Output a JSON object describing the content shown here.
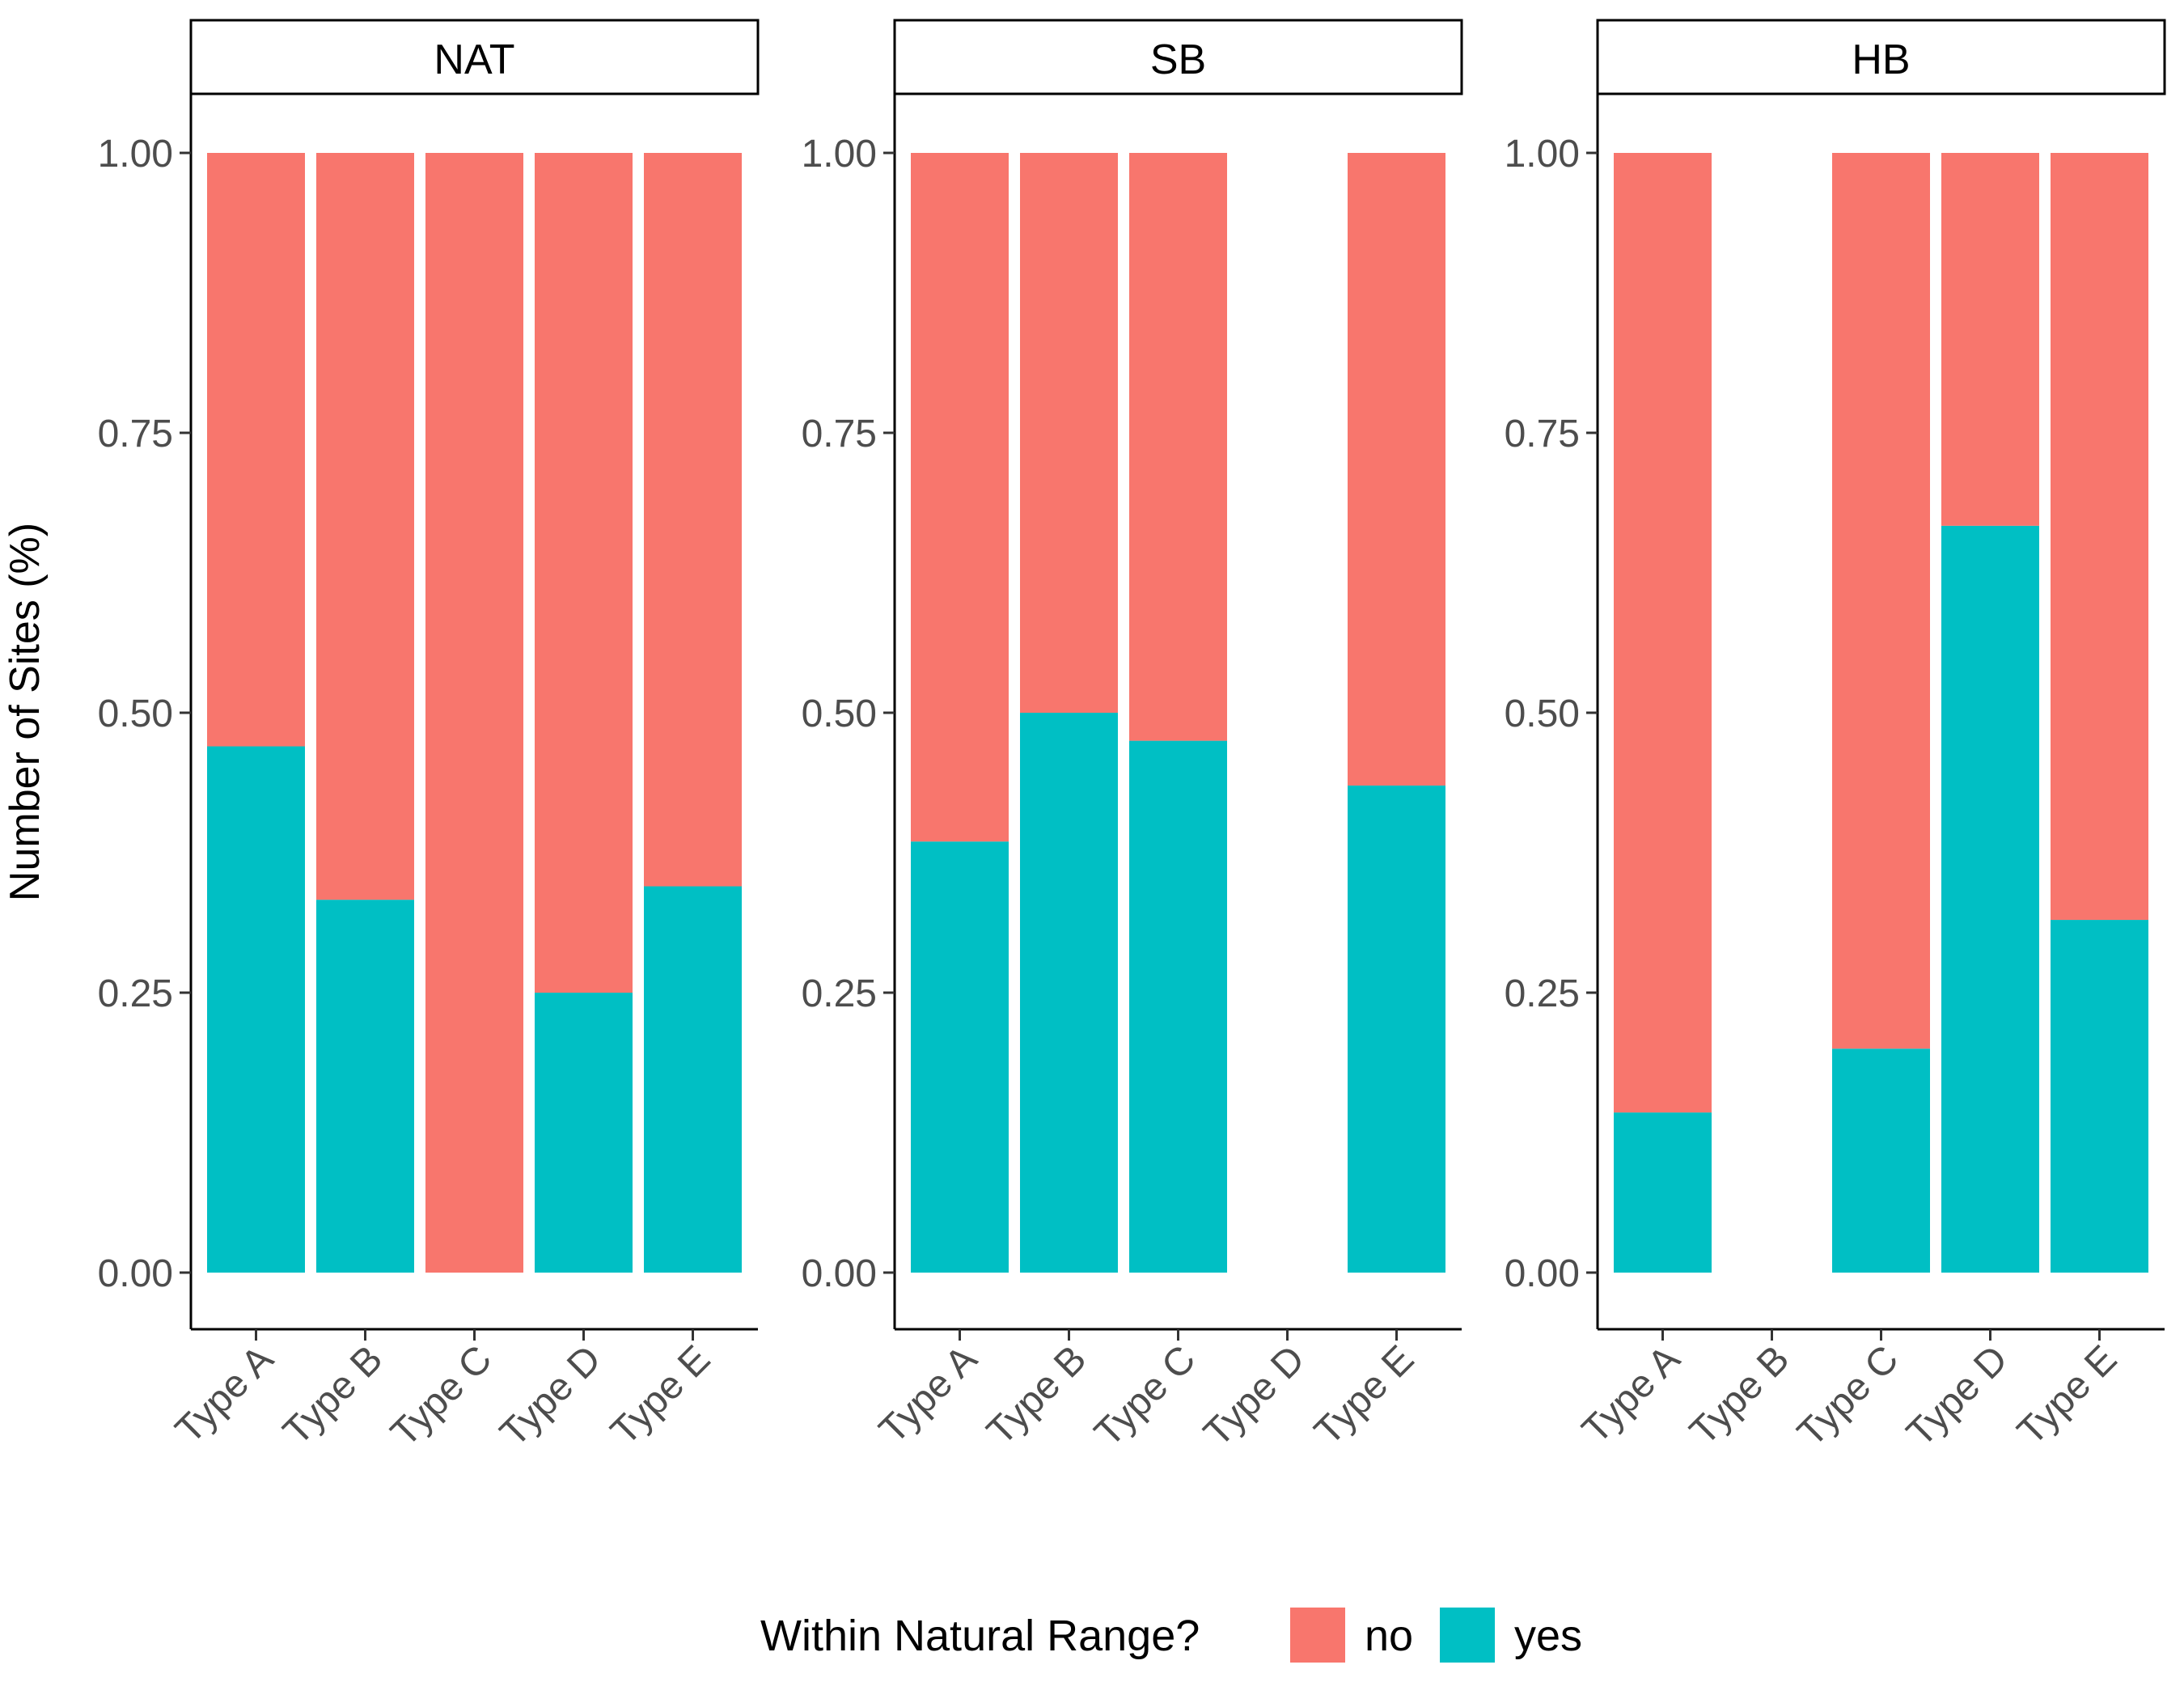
{
  "chart_data": {
    "type": "bar",
    "stacked": true,
    "ylabel": "Number of Sites (%)",
    "xlabel": "",
    "ylim": [
      -0.05,
      1.05
    ],
    "yticks": [
      "0.00",
      "0.25",
      "0.50",
      "0.75",
      "1.00"
    ],
    "categories": [
      "Type A",
      "Type B",
      "Type C",
      "Type D",
      "Type E"
    ],
    "legend": {
      "title": "Within Natural Range?",
      "position": "bottom",
      "items": [
        {
          "name": "no",
          "color": "#F8766D"
        },
        {
          "name": "yes",
          "color": "#00BFC4"
        }
      ]
    },
    "panels": [
      {
        "name": "NAT",
        "series": [
          {
            "name": "no",
            "values": [
              0.53,
              0.667,
              1.0,
              0.75,
              0.655
            ]
          },
          {
            "name": "yes",
            "values": [
              0.47,
              0.333,
              0.0,
              0.25,
              0.345
            ]
          }
        ],
        "present": [
          true,
          true,
          true,
          true,
          true
        ]
      },
      {
        "name": "SB",
        "series": [
          {
            "name": "no",
            "values": [
              0.615,
              0.5,
              0.525,
              0,
              0.565
            ]
          },
          {
            "name": "yes",
            "values": [
              0.385,
              0.5,
              0.475,
              0,
              0.435
            ]
          }
        ],
        "present": [
          true,
          true,
          true,
          false,
          true
        ]
      },
      {
        "name": "HB",
        "series": [
          {
            "name": "no",
            "values": [
              0.857,
              0,
              0.8,
              0.333,
              0.685
            ]
          },
          {
            "name": "yes",
            "values": [
              0.143,
              0,
              0.2,
              0.667,
              0.315
            ]
          }
        ],
        "present": [
          true,
          false,
          true,
          true,
          true
        ]
      }
    ]
  }
}
